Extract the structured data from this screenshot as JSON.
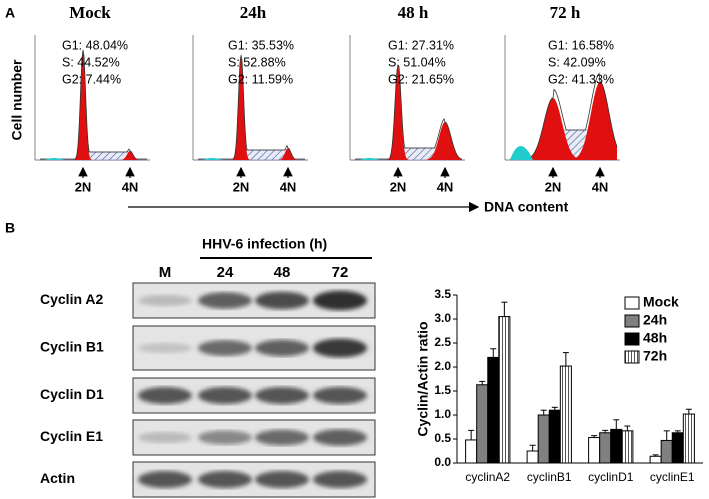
{
  "panel_a": {
    "label": "A",
    "y_axis_label": "Cell number",
    "x_axis_label": "DNA content",
    "panels": [
      {
        "title": "Mock",
        "stats": [
          "G1: 48.04%",
          "S: 44.52%",
          "G2: 7.44%"
        ],
        "markers": [
          "2N",
          "4N"
        ]
      },
      {
        "title": "24h",
        "stats": [
          "G1: 35.53%",
          "S: 52.88%",
          "G2: 11.59%"
        ],
        "markers": [
          "2N",
          "4N"
        ]
      },
      {
        "title": "48 h",
        "stats": [
          "G1: 27.31%",
          "S: 51.04%",
          "G2: 21.65%"
        ],
        "markers": [
          "2N",
          "4N"
        ]
      },
      {
        "title": "72 h",
        "stats": [
          "G1: 16.58%",
          "S: 42.09%",
          "G2: 41.33%"
        ],
        "markers": [
          "2N",
          "4N"
        ]
      }
    ]
  },
  "panel_b": {
    "label": "B",
    "treatment": "HHV-6 infection (h)",
    "lanes": [
      "M",
      "24",
      "48",
      "72"
    ],
    "rows": [
      "Cyclin A2",
      "Cyclin B1",
      "Cyclin D1",
      "Cyclin E1",
      "Actin"
    ]
  },
  "chart_data": {
    "type": "bar",
    "y_label": "Cyclin/Actin ratio",
    "categories": [
      "cyclinA2",
      "cyclinB1",
      "cyclinD1",
      "cyclinE1"
    ],
    "series": [
      {
        "name": "Mock",
        "color": "#ffffff",
        "values": [
          0.48,
          0.25,
          0.53,
          0.14
        ],
        "errors": [
          0.2,
          0.12,
          0.04,
          0.03
        ]
      },
      {
        "name": "24h",
        "color": "#808080",
        "values": [
          1.63,
          1.0,
          0.63,
          0.47
        ],
        "errors": [
          0.07,
          0.1,
          0.05,
          0.2
        ]
      },
      {
        "name": "48h",
        "color": "#000000",
        "values": [
          2.2,
          1.1,
          0.7,
          0.63
        ],
        "errors": [
          0.18,
          0.06,
          0.2,
          0.04
        ]
      },
      {
        "name": "72h",
        "color": "#ffffff",
        "hatch": "vertical",
        "values": [
          3.05,
          2.02,
          0.67,
          1.02
        ],
        "errors": [
          0.3,
          0.28,
          0.1,
          0.1
        ]
      }
    ],
    "ylim": [
      0,
      3.5
    ],
    "yticks": [
      {
        "value": 0,
        "label": "0.0"
      },
      0.5,
      {
        "value": 1,
        "label": "1.0"
      },
      1.5,
      {
        "value": 2,
        "label": "2.0"
      },
      2.5,
      {
        "value": 3,
        "label": "3.0"
      },
      3.5
    ],
    "legend": "upper right"
  }
}
